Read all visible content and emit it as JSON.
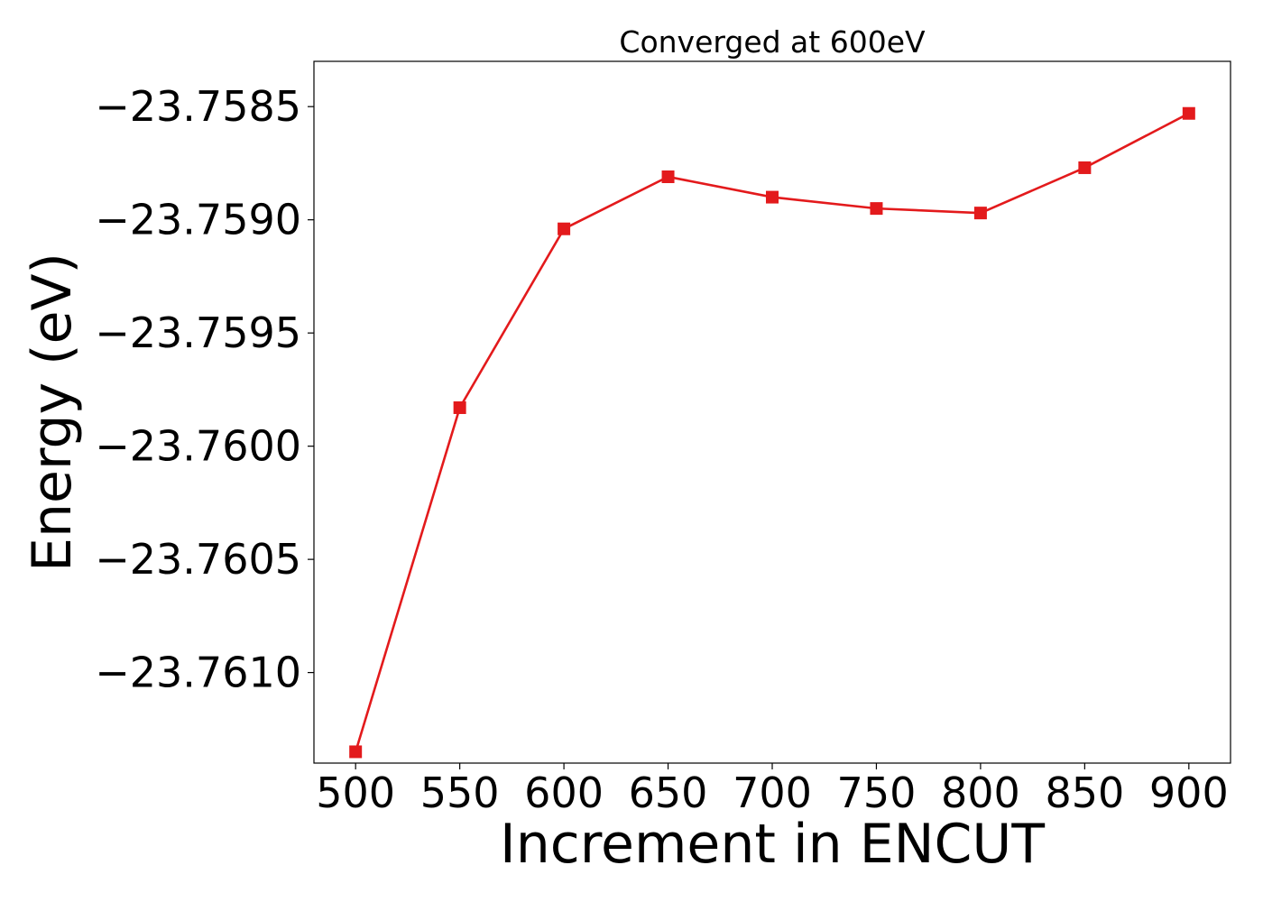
{
  "chart_data": {
    "type": "line",
    "title": "Converged at 600eV",
    "xlabel": "Increment in ENCUT",
    "ylabel": "Energy (eV)",
    "xlim": [
      480,
      920
    ],
    "ylim": [
      -23.7614,
      -23.7583
    ],
    "xticks": [
      500,
      550,
      600,
      650,
      700,
      750,
      800,
      850,
      900
    ],
    "xtick_labels": [
      "500",
      "550",
      "600",
      "650",
      "700",
      "750",
      "800",
      "850",
      "900"
    ],
    "yticks": [
      -23.7585,
      -23.759,
      -23.7595,
      -23.76,
      -23.7605,
      -23.761
    ],
    "ytick_labels": [
      "−23.7585",
      "−23.7590",
      "−23.7595",
      "−23.7600",
      "−23.7605",
      "−23.7610"
    ],
    "grid": false,
    "legend": "none",
    "series": [
      {
        "color": "#e31a1c",
        "marker": "square",
        "x": [
          500,
          550,
          600,
          650,
          700,
          750,
          800,
          850,
          900
        ],
        "y": [
          -23.76135,
          -23.75983,
          -23.75904,
          -23.75881,
          -23.7589,
          -23.75895,
          -23.75897,
          -23.75877,
          -23.75853
        ]
      }
    ]
  }
}
